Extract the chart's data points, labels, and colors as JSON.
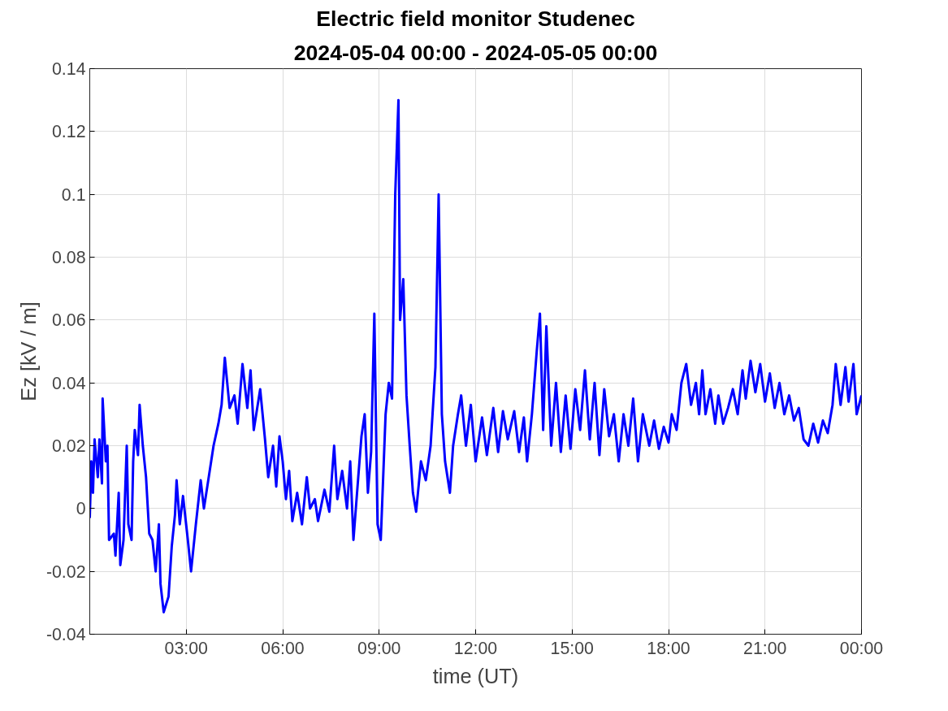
{
  "chart_data": {
    "type": "line",
    "title": "Electric field monitor Studenec",
    "subtitle": "2024-05-04 00:00 - 2024-05-05 00:00",
    "xlabel": "time (UT)",
    "ylabel": "Ez [kV / m]",
    "xlim": [
      0,
      24
    ],
    "xticks": [
      {
        "value": 3,
        "label": "03:00"
      },
      {
        "value": 6,
        "label": "06:00"
      },
      {
        "value": 9,
        "label": "09:00"
      },
      {
        "value": 12,
        "label": "12:00"
      },
      {
        "value": 15,
        "label": "15:00"
      },
      {
        "value": 18,
        "label": "18:00"
      },
      {
        "value": 21,
        "label": "21:00"
      },
      {
        "value": 24,
        "label": "00:00"
      }
    ],
    "ylim": [
      -0.04,
      0.14
    ],
    "yticks": [
      -0.04,
      -0.02,
      0,
      0.02,
      0.04,
      0.06,
      0.08,
      0.1,
      0.12,
      0.14
    ],
    "grid": true,
    "line_style": "solid",
    "series": [
      {
        "color": "#0000ff",
        "x": [
          0.0,
          0.05,
          0.1,
          0.15,
          0.25,
          0.3,
          0.38,
          0.4,
          0.5,
          0.55,
          0.6,
          0.75,
          0.8,
          0.9,
          0.95,
          1.05,
          1.15,
          1.2,
          1.3,
          1.35,
          1.4,
          1.5,
          1.55,
          1.65,
          1.75,
          1.85,
          1.95,
          2.05,
          2.15,
          2.2,
          2.3,
          2.45,
          2.55,
          2.65,
          2.7,
          2.8,
          2.9,
          3.05,
          3.15,
          3.3,
          3.45,
          3.55,
          3.7,
          3.85,
          4.0,
          4.1,
          4.2,
          4.35,
          4.5,
          4.6,
          4.75,
          4.9,
          5.0,
          5.1,
          5.3,
          5.45,
          5.55,
          5.7,
          5.8,
          5.9,
          6.0,
          6.1,
          6.2,
          6.3,
          6.45,
          6.6,
          6.75,
          6.85,
          7.0,
          7.1,
          7.3,
          7.45,
          7.6,
          7.7,
          7.85,
          8.0,
          8.1,
          8.2,
          8.35,
          8.45,
          8.55,
          8.65,
          8.75,
          8.85,
          8.95,
          9.05,
          9.2,
          9.3,
          9.4,
          9.5,
          9.6,
          9.65,
          9.75,
          9.85,
          9.95,
          10.05,
          10.15,
          10.3,
          10.45,
          10.6,
          10.75,
          10.85,
          10.95,
          11.05,
          11.2,
          11.3,
          11.45,
          11.55,
          11.7,
          11.85,
          12.0,
          12.2,
          12.35,
          12.55,
          12.7,
          12.85,
          13.0,
          13.2,
          13.35,
          13.5,
          13.6,
          13.75,
          13.9,
          14.0,
          14.1,
          14.2,
          14.35,
          14.5,
          14.65,
          14.8,
          14.95,
          15.1,
          15.25,
          15.4,
          15.55,
          15.7,
          15.85,
          16.0,
          16.15,
          16.3,
          16.45,
          16.6,
          16.75,
          16.9,
          17.05,
          17.2,
          17.4,
          17.55,
          17.7,
          17.85,
          18.0,
          18.1,
          18.25,
          18.4,
          18.55,
          18.7,
          18.85,
          18.95,
          19.05,
          19.15,
          19.3,
          19.45,
          19.55,
          19.7,
          19.85,
          20.0,
          20.15,
          20.3,
          20.4,
          20.55,
          20.7,
          20.85,
          21.0,
          21.15,
          21.3,
          21.45,
          21.6,
          21.75,
          21.9,
          22.05,
          22.2,
          22.35,
          22.5,
          22.65,
          22.8,
          22.95,
          23.1,
          23.2,
          23.35,
          23.5,
          23.6,
          23.75,
          23.85,
          24.0
        ],
        "values": [
          -0.003,
          0.015,
          0.005,
          0.022,
          0.01,
          0.022,
          0.008,
          0.035,
          0.015,
          0.02,
          -0.01,
          -0.008,
          -0.015,
          0.005,
          -0.018,
          -0.01,
          0.02,
          -0.005,
          -0.01,
          0.015,
          0.025,
          0.017,
          0.033,
          0.02,
          0.01,
          -0.008,
          -0.01,
          -0.02,
          -0.005,
          -0.024,
          -0.033,
          -0.028,
          -0.012,
          -0.002,
          0.009,
          -0.005,
          0.004,
          -0.01,
          -0.02,
          -0.005,
          0.009,
          0.0,
          0.01,
          0.02,
          0.027,
          0.033,
          0.048,
          0.032,
          0.036,
          0.027,
          0.046,
          0.032,
          0.044,
          0.025,
          0.038,
          0.022,
          0.01,
          0.02,
          0.007,
          0.023,
          0.015,
          0.003,
          0.012,
          -0.004,
          0.005,
          -0.005,
          0.01,
          0.0,
          0.003,
          -0.004,
          0.006,
          -0.001,
          0.02,
          0.003,
          0.012,
          0.0,
          0.015,
          -0.01,
          0.01,
          0.023,
          0.03,
          0.005,
          0.018,
          0.062,
          -0.005,
          -0.01,
          0.03,
          0.04,
          0.035,
          0.1,
          0.13,
          0.06,
          0.073,
          0.036,
          0.02,
          0.005,
          -0.001,
          0.015,
          0.009,
          0.02,
          0.045,
          0.1,
          0.03,
          0.015,
          0.005,
          0.02,
          0.03,
          0.036,
          0.02,
          0.033,
          0.015,
          0.029,
          0.017,
          0.032,
          0.018,
          0.031,
          0.022,
          0.031,
          0.018,
          0.029,
          0.015,
          0.03,
          0.05,
          0.062,
          0.025,
          0.058,
          0.02,
          0.04,
          0.018,
          0.036,
          0.019,
          0.038,
          0.025,
          0.044,
          0.022,
          0.04,
          0.017,
          0.038,
          0.023,
          0.03,
          0.015,
          0.03,
          0.02,
          0.035,
          0.015,
          0.03,
          0.02,
          0.028,
          0.019,
          0.026,
          0.021,
          0.03,
          0.025,
          0.04,
          0.046,
          0.033,
          0.04,
          0.03,
          0.044,
          0.03,
          0.038,
          0.027,
          0.036,
          0.027,
          0.032,
          0.038,
          0.03,
          0.044,
          0.035,
          0.047,
          0.037,
          0.046,
          0.034,
          0.043,
          0.032,
          0.04,
          0.03,
          0.036,
          0.028,
          0.032,
          0.022,
          0.02,
          0.027,
          0.021,
          0.028,
          0.024,
          0.033,
          0.046,
          0.033,
          0.045,
          0.034,
          0.046,
          0.03,
          0.036
        ]
      }
    ]
  }
}
